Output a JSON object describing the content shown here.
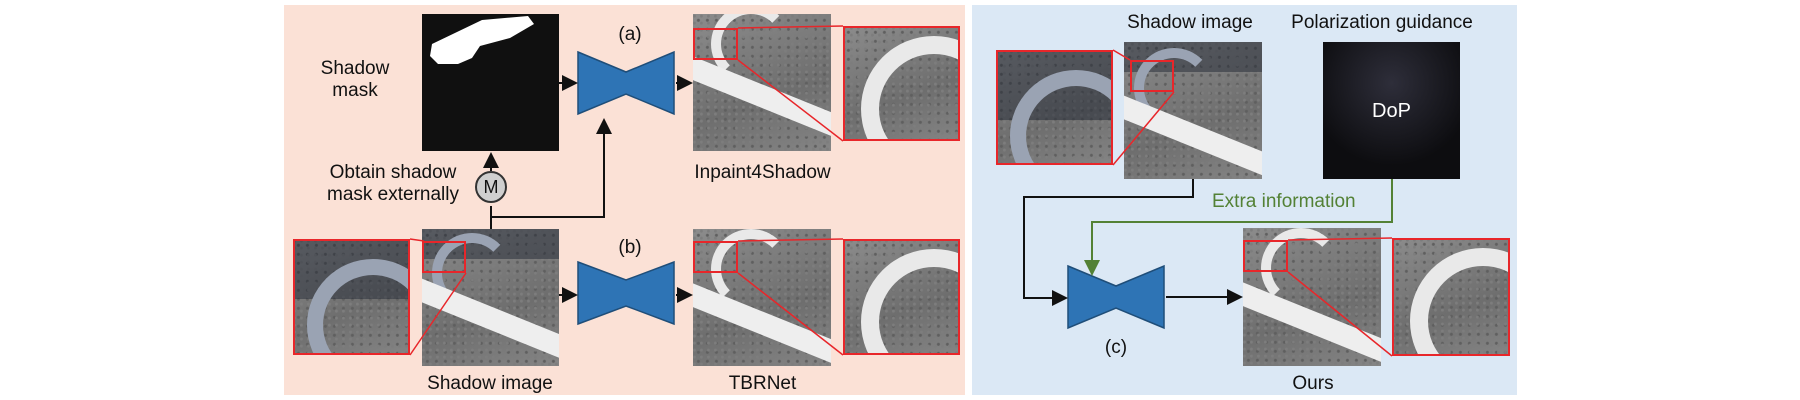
{
  "panel_a": {
    "marker": "(a)",
    "shadow_mask_label": "Shadow\nmask",
    "obtain_label": "Obtain shadow\nmask externally",
    "m_symbol": "M",
    "result_label": "Inpaint4Shadow"
  },
  "panel_b": {
    "marker": "(b)",
    "input_label": "Shadow image",
    "result_label": "TBRNet"
  },
  "panel_c": {
    "marker": "(c)",
    "shadow_image_label": "Shadow image",
    "polarization_label": "Polarization guidance",
    "dop_label": "DoP",
    "extra_label": "Extra information",
    "result_label": "Ours"
  },
  "colors": {
    "left_panel": "#fbe1d6",
    "right_panel": "#dbe8f5",
    "network": "#2e74b5",
    "extra_arrow": "#538135",
    "highlight_box": "#e8262a"
  }
}
